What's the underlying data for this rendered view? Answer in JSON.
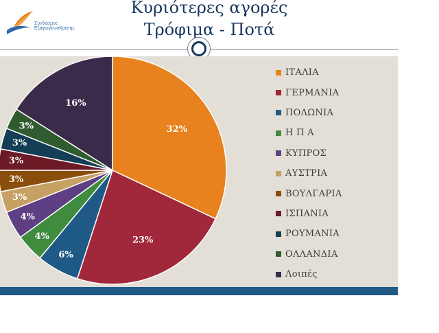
{
  "header": {
    "title_line1": "Κυριότερες αγορές",
    "title_line2": "Τρόφιμα - Ποτά",
    "logo_line1": "Σύνδεσμος",
    "logo_line2": "ΕξαγωγέωνΚρήτης"
  },
  "colors": {
    "title": "#17365d",
    "panel": "#e3dfd6",
    "bottom_bar": "#1f5b86"
  },
  "chart_data": {
    "type": "pie",
    "title": "",
    "categories": [
      "ΙΤΑΛΙΑ",
      "ΓΕΡΜΑΝΙΑ",
      "ΠΟΛΩΝΙΑ",
      "Η Π Α",
      "ΚΥΠΡΟΣ",
      "ΑΥΣΤΡΙΑ",
      "ΒΟΥΛΓΑΡΙΑ",
      "ΙΣΠΑΝΙΑ",
      "ΡΟΥΜΑΝΙΑ",
      "ΟΛΛΑΝΔΙΑ",
      "Λοιπές"
    ],
    "values": [
      32,
      23,
      6,
      4,
      4,
      3,
      3,
      3,
      3,
      3,
      16
    ],
    "data_labels": [
      "32%",
      "23%",
      "6%",
      "4%",
      "4%",
      "3%",
      "3%",
      "3%",
      "3%",
      "3%",
      "16%"
    ],
    "colors": [
      "#e8821e",
      "#a0283a",
      "#1f5a86",
      "#3f8c3e",
      "#5e3f84",
      "#c7a064",
      "#8a4e0c",
      "#6b1a26",
      "#143d56",
      "#2f5b2e",
      "#3a2b4a"
    ],
    "legend_position": "right"
  }
}
